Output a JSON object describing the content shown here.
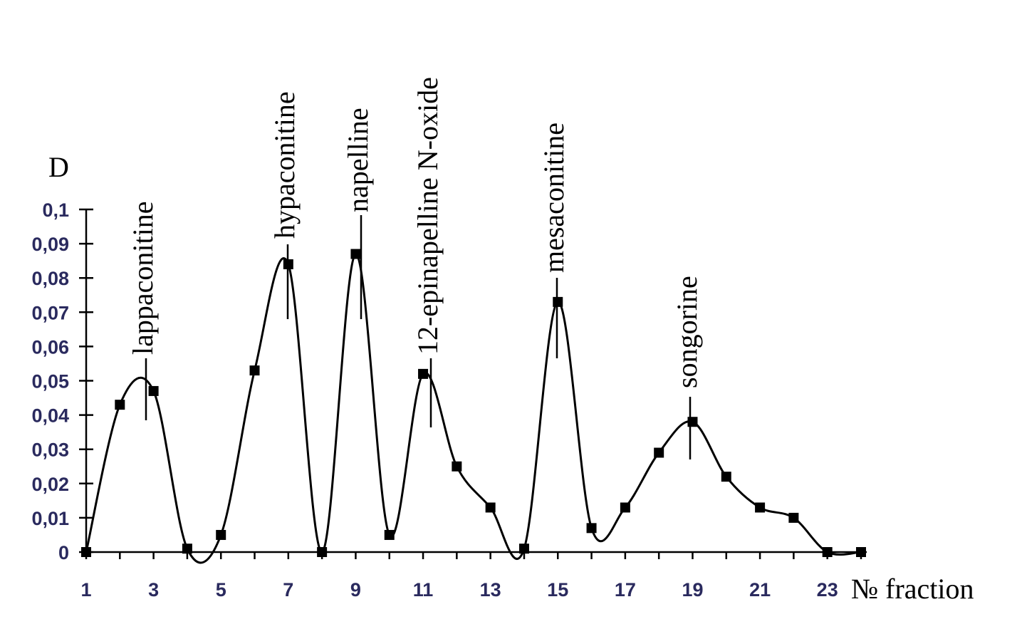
{
  "chart_data": {
    "type": "line",
    "x_label": "№ fraction",
    "y_label": "D",
    "x": [
      1,
      2,
      3,
      4,
      5,
      6,
      7,
      8,
      9,
      10,
      11,
      12,
      13,
      14,
      15,
      16,
      17,
      18,
      19,
      20,
      21,
      22,
      23,
      24
    ],
    "series": [
      {
        "color": "#000000",
        "values": [
          0,
          0.043,
          0.047,
          0.001,
          0.005,
          0.053,
          0.084,
          0,
          0.087,
          0.005,
          0.052,
          0.025,
          0.013,
          0.001,
          0.073,
          0.007,
          0.013,
          0.029,
          0.038,
          0.022,
          0.013,
          0.01,
          0,
          0
        ]
      }
    ],
    "xlim": [
      1,
      24
    ],
    "xticks": [
      1,
      3,
      5,
      7,
      9,
      11,
      13,
      15,
      17,
      19,
      21,
      23
    ],
    "ylim": [
      0,
      0.1
    ],
    "yticks": [
      0,
      {
        "value": 0.01,
        "label": "0,01"
      },
      {
        "value": 0.02,
        "label": "0,02"
      },
      {
        "value": 0.03,
        "label": "0,03"
      },
      {
        "value": 0.04,
        "label": "0,04"
      },
      {
        "value": 0.05,
        "label": "0,05"
      },
      {
        "value": 0.06,
        "label": "0,06"
      },
      {
        "value": 0.07,
        "label": "0,07"
      },
      {
        "value": 0.08,
        "label": "0,08"
      },
      {
        "value": 0.09,
        "label": "0,09"
      },
      {
        "value": 0.1,
        "label": "0,1"
      }
    ],
    "annotations": [
      "lappaconitine",
      "hypaconitine",
      "napelline",
      "12-epinapelline N-oxide",
      "mesaconitine",
      "songorine"
    ]
  }
}
